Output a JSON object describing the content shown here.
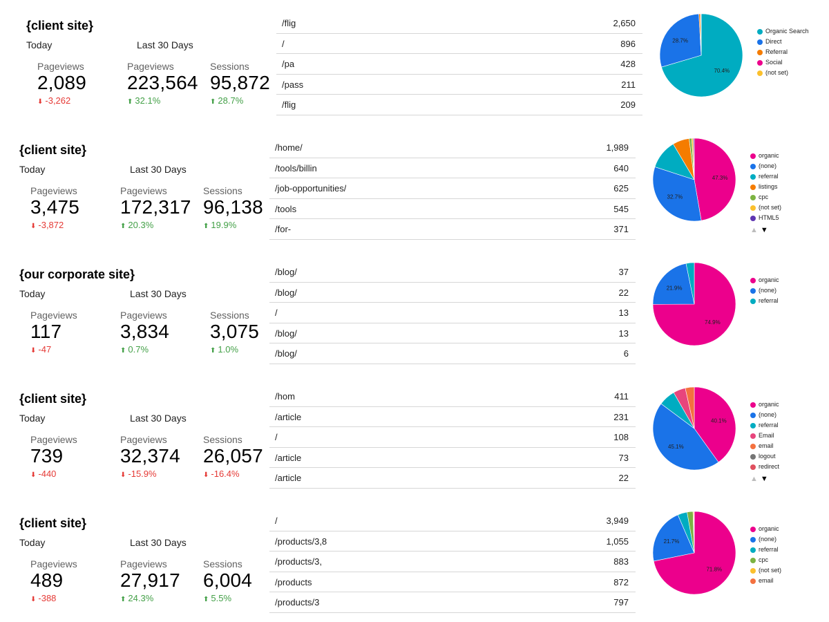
{
  "sites": [
    {
      "title": "{client site}",
      "today_label": "Today",
      "last30_label": "Last 30 Days",
      "metrics": [
        {
          "label": "Pageviews",
          "value": "2,089",
          "delta": "-3,262",
          "dir": "down"
        },
        {
          "label": "Pageviews",
          "value": "223,564",
          "delta": "32.1%",
          "dir": "up"
        },
        {
          "label": "Sessions",
          "value": "95,872",
          "delta": "28.7%",
          "dir": "up"
        }
      ],
      "pages": [
        {
          "path": "/flig",
          "count": "2,650"
        },
        {
          "path": "/",
          "count": "896"
        },
        {
          "path": "/pa",
          "count": "428"
        },
        {
          "path": "/pass",
          "count": "211"
        },
        {
          "path": "/flig",
          "count": "209"
        }
      ]
    },
    {
      "title": "{client site}",
      "today_label": "Today",
      "last30_label": "Last 30 Days",
      "metrics": [
        {
          "label": "Pageviews",
          "value": "3,475",
          "delta": "-3,872",
          "dir": "down"
        },
        {
          "label": "Pageviews",
          "value": "172,317",
          "delta": "20.3%",
          "dir": "up"
        },
        {
          "label": "Sessions",
          "value": "96,138",
          "delta": "19.9%",
          "dir": "up"
        }
      ],
      "pages": [
        {
          "path": "/home/",
          "count": "1,989"
        },
        {
          "path": "/tools/billin",
          "count": "640"
        },
        {
          "path": "/job-opportunities/",
          "count": "625"
        },
        {
          "path": "/tools",
          "count": "545"
        },
        {
          "path": "/for-",
          "count": "371"
        }
      ]
    },
    {
      "title": "{our corporate site}",
      "today_label": "Today",
      "last30_label": "Last 30 Days",
      "metrics": [
        {
          "label": "Pageviews",
          "value": "117",
          "delta": "-47",
          "dir": "down"
        },
        {
          "label": "Pageviews",
          "value": "3,834",
          "delta": "0.7%",
          "dir": "up"
        },
        {
          "label": "Sessions",
          "value": "3,075",
          "delta": "1.0%",
          "dir": "up"
        }
      ],
      "pages": [
        {
          "path": "/blog/",
          "count": "37"
        },
        {
          "path": "/blog/",
          "count": "22"
        },
        {
          "path": "/",
          "count": "13"
        },
        {
          "path": "/blog/",
          "count": "13"
        },
        {
          "path": "/blog/",
          "count": "6"
        }
      ]
    },
    {
      "title": "{client site}",
      "today_label": "Today",
      "last30_label": "Last 30 Days",
      "metrics": [
        {
          "label": "Pageviews",
          "value": "739",
          "delta": "-440",
          "dir": "down"
        },
        {
          "label": "Pageviews",
          "value": "32,374",
          "delta": "-15.9%",
          "dir": "down"
        },
        {
          "label": "Sessions",
          "value": "26,057",
          "delta": "-16.4%",
          "dir": "down"
        }
      ],
      "pages": [
        {
          "path": "/hom",
          "count": "411"
        },
        {
          "path": "/article",
          "count": "231"
        },
        {
          "path": "/",
          "count": "108"
        },
        {
          "path": "/article",
          "count": "73"
        },
        {
          "path": "/article",
          "count": "22"
        }
      ]
    },
    {
      "title": "{client site}",
      "today_label": "Today",
      "last30_label": "Last 30 Days",
      "metrics": [
        {
          "label": "Pageviews",
          "value": "489",
          "delta": "-388",
          "dir": "down"
        },
        {
          "label": "Pageviews",
          "value": "27,917",
          "delta": "24.3%",
          "dir": "up"
        },
        {
          "label": "Sessions",
          "value": "6,004",
          "delta": "5.5%",
          "dir": "up"
        }
      ],
      "pages": [
        {
          "path": "/",
          "count": "3,949"
        },
        {
          "path": "/products/3,8",
          "count": "1,055"
        },
        {
          "path": "/products/3,",
          "count": "883"
        },
        {
          "path": "/products",
          "count": "872"
        },
        {
          "path": "/products/3",
          "count": "797"
        }
      ]
    }
  ],
  "chart_data": [
    {
      "type": "pie",
      "title": "",
      "legend_position": "right",
      "slices": [
        {
          "label": "Organic Search",
          "value": 70.4,
          "color": "#00acc1",
          "data_label": "70.4%"
        },
        {
          "label": "Direct",
          "value": 28.7,
          "color": "#1a73e8",
          "data_label": "28.7%"
        },
        {
          "label": "Referral",
          "value": 0.6,
          "color": "#f57c00",
          "data_label": ""
        },
        {
          "label": "Social",
          "value": 0.2,
          "color": "#ec008c",
          "data_label": ""
        },
        {
          "label": "(not set)",
          "value": 0.1,
          "color": "#fbc02d",
          "data_label": ""
        }
      ],
      "legend_paged": false
    },
    {
      "type": "pie",
      "title": "",
      "legend_position": "right",
      "slices": [
        {
          "label": "organic",
          "value": 47.3,
          "color": "#ec008c",
          "data_label": "47.3%"
        },
        {
          "label": "(none)",
          "value": 32.7,
          "color": "#1a73e8",
          "data_label": "32.7%"
        },
        {
          "label": "referral",
          "value": 11.5,
          "color": "#00acc1",
          "data_label": ""
        },
        {
          "label": "listings",
          "value": 6.5,
          "color": "#f57c00",
          "data_label": ""
        },
        {
          "label": "cpc",
          "value": 1.0,
          "color": "#7cb342",
          "data_label": ""
        },
        {
          "label": "(not set)",
          "value": 0.6,
          "color": "#fbc02d",
          "data_label": ""
        },
        {
          "label": "HTML5",
          "value": 0.4,
          "color": "#5e35b1",
          "data_label": ""
        }
      ],
      "legend_paged": true
    },
    {
      "type": "pie",
      "title": "",
      "legend_position": "right",
      "slices": [
        {
          "label": "organic",
          "value": 74.9,
          "color": "#ec008c",
          "data_label": "74.9%"
        },
        {
          "label": "(none)",
          "value": 21.9,
          "color": "#1a73e8",
          "data_label": "21.9%"
        },
        {
          "label": "referral",
          "value": 3.2,
          "color": "#00acc1",
          "data_label": ""
        }
      ],
      "legend_paged": false
    },
    {
      "type": "pie",
      "title": "",
      "legend_position": "right",
      "slices": [
        {
          "label": "organic",
          "value": 40.1,
          "color": "#ec008c",
          "data_label": "40.1%"
        },
        {
          "label": "(none)",
          "value": 45.1,
          "color": "#1a73e8",
          "data_label": "45.1%"
        },
        {
          "label": "referral",
          "value": 6.5,
          "color": "#00acc1",
          "data_label": ""
        },
        {
          "label": "Email",
          "value": 4.8,
          "color": "#e8457c",
          "data_label": ""
        },
        {
          "label": "email",
          "value": 3.5,
          "color": "#f4713f",
          "data_label": ""
        },
        {
          "label": "logout",
          "value": 0,
          "color": "#757575",
          "data_label": ""
        },
        {
          "label": "redirect",
          "value": 0,
          "color": "#e0505f",
          "data_label": ""
        }
      ],
      "legend_paged": true
    },
    {
      "type": "pie",
      "title": "",
      "legend_position": "right",
      "slices": [
        {
          "label": "organic",
          "value": 71.8,
          "color": "#ec008c",
          "data_label": "71.8%"
        },
        {
          "label": "(none)",
          "value": 21.7,
          "color": "#1a73e8",
          "data_label": "21.7%"
        },
        {
          "label": "referral",
          "value": 3.7,
          "color": "#00acc1",
          "data_label": ""
        },
        {
          "label": "cpc",
          "value": 2.3,
          "color": "#7cb342",
          "data_label": ""
        },
        {
          "label": "(not set)",
          "value": 0.3,
          "color": "#fbc02d",
          "data_label": ""
        },
        {
          "label": "email",
          "value": 0.2,
          "color": "#f4713f",
          "data_label": ""
        }
      ],
      "legend_paged": false
    }
  ]
}
